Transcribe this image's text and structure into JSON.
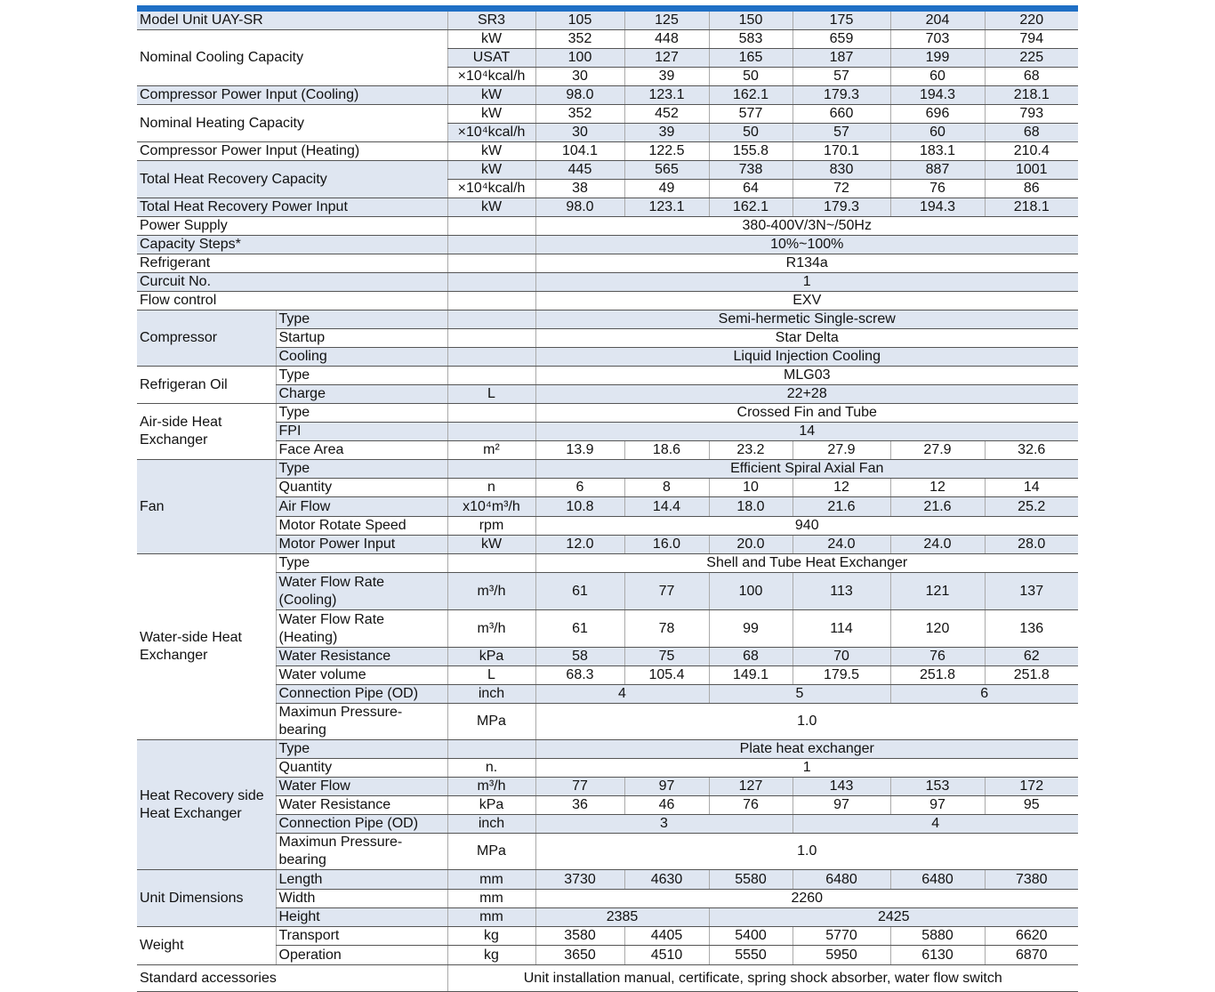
{
  "table": {
    "rows": [
      [
        "Model Unit UAY-SR",
        "SR3",
        "105",
        "125",
        "150",
        "175",
        "204",
        "220"
      ],
      [
        "Nominal Cooling Capacity",
        "kW",
        "352",
        "448",
        "583",
        "659",
        "703",
        "794"
      ],
      [
        "USAT",
        "100",
        "127",
        "165",
        "187",
        "199",
        "225"
      ],
      [
        "×10⁴kcal/h",
        "30",
        "39",
        "50",
        "57",
        "60",
        "68"
      ],
      [
        "Compressor Power Input (Cooling)",
        "kW",
        "98.0",
        "123.1",
        "162.1",
        "179.3",
        "194.3",
        "218.1"
      ],
      [
        "Nominal Heating Capacity",
        "kW",
        "352",
        "452",
        "577",
        "660",
        "696",
        "793"
      ],
      [
        "×10⁴kcal/h",
        "30",
        "39",
        "50",
        "57",
        "60",
        "68"
      ],
      [
        "Compressor Power Input (Heating)",
        "kW",
        "104.1",
        "122.5",
        "155.8",
        "170.1",
        "183.1",
        "210.4"
      ],
      [
        "Total Heat Recovery Capacity",
        "kW",
        "445",
        "565",
        "738",
        "830",
        "887",
        "1001"
      ],
      [
        "×10⁴kcal/h",
        "38",
        "49",
        "64",
        "72",
        "76",
        "86"
      ],
      [
        "Total Heat Recovery Power Input",
        "kW",
        "98.0",
        "123.1",
        "162.1",
        "179.3",
        "194.3",
        "218.1"
      ],
      [
        "Power Supply",
        "380-400V/3N~/50Hz"
      ],
      [
        "Capacity Steps*",
        "10%~100%"
      ],
      [
        "Refrigerant",
        "R134a"
      ],
      [
        "Curcuit No.",
        "1"
      ],
      [
        "Flow control",
        "EXV"
      ],
      [
        "Compressor",
        "Type",
        "Semi-hermetic Single-screw"
      ],
      [
        "Startup",
        "Star Delta"
      ],
      [
        "Cooling",
        "Liquid Injection Cooling"
      ],
      [
        "Refrigeran Oil",
        "Type",
        "MLG03"
      ],
      [
        "Charge",
        "L",
        "22+28"
      ],
      [
        "Air-side Heat Exchanger",
        "Type",
        "Crossed Fin and Tube"
      ],
      [
        "FPI",
        "14"
      ],
      [
        "Face Area",
        "m²",
        "13.9",
        "18.6",
        "23.2",
        "27.9",
        "27.9",
        "32.6"
      ],
      [
        "Fan",
        "Type",
        "Efficient Spiral Axial Fan"
      ],
      [
        "Quantity",
        "n",
        "6",
        "8",
        "10",
        "12",
        "12",
        "14"
      ],
      [
        "Air Flow",
        "x10⁴m³/h",
        "10.8",
        "14.4",
        "18.0",
        "21.6",
        "21.6",
        "25.2"
      ],
      [
        "Motor Rotate Speed",
        "rpm",
        "940"
      ],
      [
        "Motor Power Input",
        "kW",
        "12.0",
        "16.0",
        "20.0",
        "24.0",
        "24.0",
        "28.0"
      ],
      [
        "Water-side Heat Exchanger",
        "Type",
        "Shell and Tube Heat Exchanger"
      ],
      [
        "Water Flow Rate (Cooling)",
        "m³/h",
        "61",
        "77",
        "100",
        "113",
        "121",
        "137"
      ],
      [
        "Water Flow Rate (Heating)",
        "m³/h",
        "61",
        "78",
        "99",
        "114",
        "120",
        "136"
      ],
      [
        "Water Resistance",
        "kPa",
        "58",
        "75",
        "68",
        "70",
        "76",
        "62"
      ],
      [
        "Water volume",
        "L",
        "68.3",
        "105.4",
        "149.1",
        "179.5",
        "251.8",
        "251.8"
      ],
      [
        "Connection Pipe (OD)",
        "inch",
        "4",
        "5",
        "6"
      ],
      [
        "Maximun Pressure-bearing",
        "MPa",
        "1.0"
      ],
      [
        "Heat Recovery side Heat Exchanger",
        "Type",
        "Plate heat exchanger"
      ],
      [
        "Quantity",
        "n.",
        "1"
      ],
      [
        "Water Flow",
        "m³/h",
        "77",
        "97",
        "127",
        "143",
        "153",
        "172"
      ],
      [
        "Water Resistance",
        "kPa",
        "36",
        "46",
        "76",
        "97",
        "97",
        "95"
      ],
      [
        "Connection Pipe (OD)",
        "inch",
        "3",
        "4"
      ],
      [
        "Maximun Pressure-bearing",
        "MPa",
        "1.0"
      ],
      [
        "Unit Dimensions",
        "Length",
        "mm",
        "3730",
        "4630",
        "5580",
        "6480",
        "6480",
        "7380"
      ],
      [
        "Width",
        "mm",
        "2260"
      ],
      [
        "Height",
        "mm",
        "2385",
        "2425"
      ],
      [
        "Weight",
        "Transport",
        "kg",
        "3580",
        "4405",
        "5400",
        "5770",
        "5880",
        "6620"
      ],
      [
        "Operation",
        "kg",
        "3650",
        "4510",
        "5550",
        "5950",
        "6130",
        "6870"
      ],
      [
        "Standard accessories",
        "Unit installation manual, certificate, spring shock absorber, water flow switch"
      ]
    ]
  }
}
